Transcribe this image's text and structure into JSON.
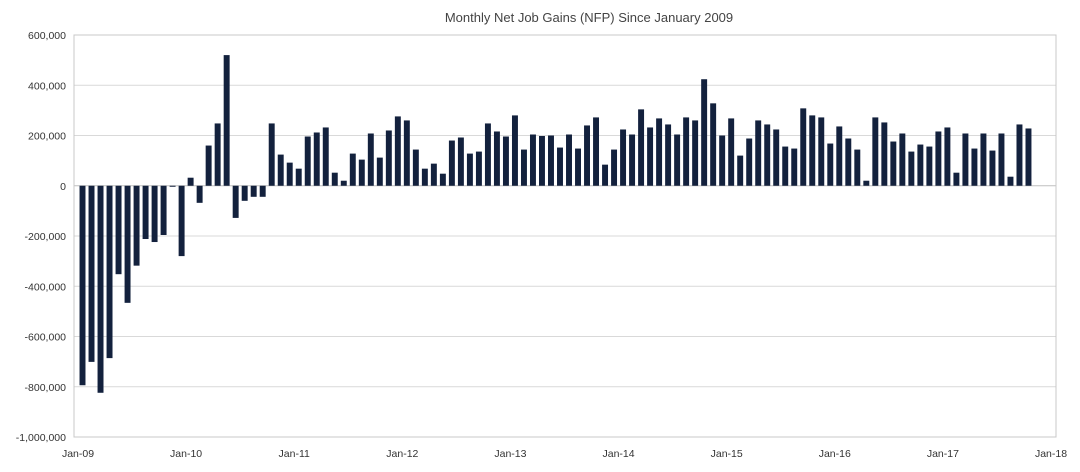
{
  "chart_data": {
    "type": "bar",
    "title": "Monthly Net Job Gains (NFP) Since January 2009",
    "xlabel": "",
    "ylabel": "",
    "ylim": [
      -1000000,
      600000
    ],
    "yticks": [
      600000,
      400000,
      200000,
      0,
      -200000,
      -400000,
      -600000,
      -800000,
      -1000000
    ],
    "ytick_labels": [
      "600,000",
      "400,000",
      "200,000",
      "0",
      "-200,000",
      "-400,000",
      "-600,000",
      "-800,000",
      "-1,000,000"
    ],
    "xtick_labels": [
      "Jan-09",
      "Jan-10",
      "Jan-11",
      "Jan-12",
      "Jan-13",
      "Jan-14",
      "Jan-15",
      "Jan-16",
      "Jan-17",
      "Jan-18"
    ],
    "x_start": "Jan-09",
    "x_end": "Jan-18",
    "grid": true,
    "bar_color": "#13213d",
    "values": [
      -794000,
      -701000,
      -824000,
      -686000,
      -352000,
      -466000,
      -318000,
      -212000,
      -224000,
      -196000,
      -4000,
      -280000,
      32000,
      -68000,
      160000,
      248000,
      520000,
      -128000,
      -60000,
      -44000,
      -44000,
      248000,
      124000,
      92000,
      68000,
      196000,
      212000,
      232000,
      52000,
      20000,
      128000,
      104000,
      208000,
      112000,
      220000,
      276000,
      260000,
      144000,
      68000,
      88000,
      48000,
      180000,
      192000,
      128000,
      136000,
      248000,
      216000,
      196000,
      280000,
      144000,
      204000,
      198000,
      200000,
      152000,
      204000,
      148000,
      240000,
      272000,
      84000,
      144000,
      224000,
      204000,
      304000,
      232000,
      268000,
      244000,
      204000,
      272000,
      260000,
      424000,
      328000,
      200000,
      268000,
      120000,
      188000,
      260000,
      244000,
      224000,
      156000,
      148000,
      308000,
      280000,
      272000,
      168000,
      236000,
      188000,
      144000,
      20000,
      272000,
      252000,
      176000,
      208000,
      136000,
      164000,
      156000,
      216000,
      232000,
      52000,
      208000,
      148000,
      208000,
      140000,
      208000,
      36000,
      244000,
      228000
    ]
  }
}
